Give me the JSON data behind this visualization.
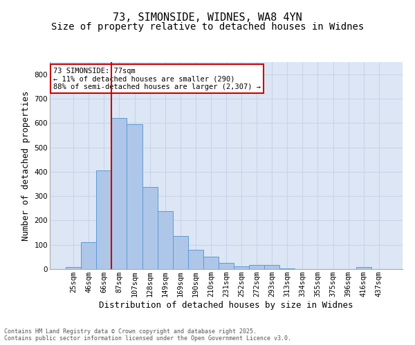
{
  "title1": "73, SIMONSIDE, WIDNES, WA8 4YN",
  "title2": "Size of property relative to detached houses in Widnes",
  "xlabel": "Distribution of detached houses by size in Widnes",
  "ylabel": "Number of detached properties",
  "categories": [
    "25sqm",
    "46sqm",
    "66sqm",
    "87sqm",
    "107sqm",
    "128sqm",
    "149sqm",
    "169sqm",
    "190sqm",
    "210sqm",
    "231sqm",
    "252sqm",
    "272sqm",
    "293sqm",
    "313sqm",
    "334sqm",
    "355sqm",
    "375sqm",
    "396sqm",
    "416sqm",
    "437sqm"
  ],
  "values": [
    8,
    110,
    405,
    620,
    595,
    337,
    237,
    135,
    80,
    52,
    25,
    12,
    17,
    16,
    3,
    0,
    0,
    0,
    0,
    8,
    0
  ],
  "bar_color": "#aec6e8",
  "bar_edge_color": "#5b9bd5",
  "vline_color": "#cc0000",
  "annotation_text": "73 SIMONSIDE: 77sqm\n← 11% of detached houses are smaller (290)\n88% of semi-detached houses are larger (2,307) →",
  "annotation_box_color": "#ffffff",
  "annotation_box_edge_color": "#cc0000",
  "ylim": [
    0,
    850
  ],
  "yticks": [
    0,
    100,
    200,
    300,
    400,
    500,
    600,
    700,
    800
  ],
  "grid_color": "#c8d4e8",
  "background_color": "#dce6f5",
  "footer_text": "Contains HM Land Registry data © Crown copyright and database right 2025.\nContains public sector information licensed under the Open Government Licence v3.0.",
  "title_fontsize": 11,
  "subtitle_fontsize": 10,
  "tick_fontsize": 7.5,
  "ylabel_fontsize": 9,
  "xlabel_fontsize": 9,
  "footer_fontsize": 6
}
